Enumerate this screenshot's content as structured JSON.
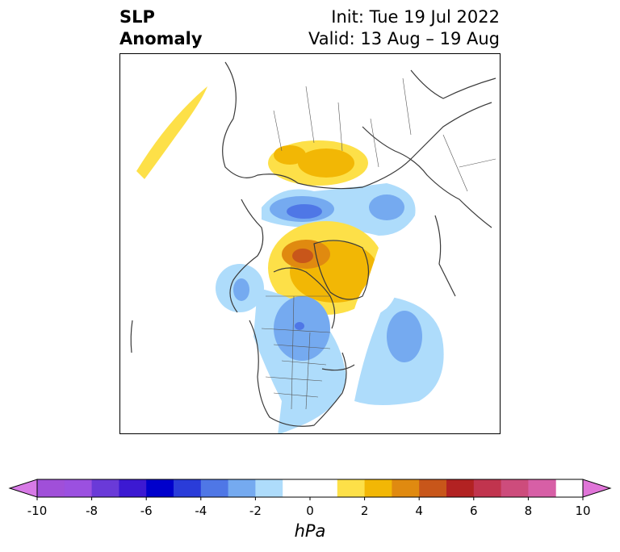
{
  "title": {
    "line1": "SLP",
    "line2": "Anomaly",
    "init": "Init: Tue 19 Jul 2022",
    "valid": "Valid: 13 Aug – 19 Aug"
  },
  "colorbar": {
    "units": "hPa",
    "ticks": [
      "-10",
      "-8",
      "-6",
      "-4",
      "-2",
      "0",
      "2",
      "4",
      "6",
      "8",
      "10"
    ],
    "bins": [
      {
        "from": -10,
        "to": -9,
        "color": "#a04fd9"
      },
      {
        "from": -9,
        "to": -8,
        "color": "#9b50e0"
      },
      {
        "from": -8,
        "to": -7,
        "color": "#6a3ad8"
      },
      {
        "from": -7,
        "to": -6,
        "color": "#3c19d2"
      },
      {
        "from": -6,
        "to": -5,
        "color": "#0000cc"
      },
      {
        "from": -5,
        "to": -4,
        "color": "#2a3cd9"
      },
      {
        "from": -4,
        "to": -3,
        "color": "#4f77e6"
      },
      {
        "from": -3,
        "to": -2,
        "color": "#75aaf0"
      },
      {
        "from": -2,
        "to": -1,
        "color": "#aedcfb"
      },
      {
        "from": -1,
        "to": 1,
        "color": "#ffffff"
      },
      {
        "from": 1,
        "to": 2,
        "color": "#fde048"
      },
      {
        "from": 2,
        "to": 3,
        "color": "#f2b705"
      },
      {
        "from": 3,
        "to": 4,
        "color": "#e08a10"
      },
      {
        "from": 4,
        "to": 5,
        "color": "#c8561a"
      },
      {
        "from": 5,
        "to": 6,
        "color": "#b22222"
      },
      {
        "from": 6,
        "to": 7,
        "color": "#c1344e"
      },
      {
        "from": 7,
        "to": 8,
        "color": "#cd4c7c"
      },
      {
        "from": 8,
        "to": 9,
        "color": "#d75fa6"
      }
    ],
    "extend_low_color": "#d77ae6",
    "extend_high_color": "#e075d8",
    "range": [
      -10,
      10
    ]
  }
}
